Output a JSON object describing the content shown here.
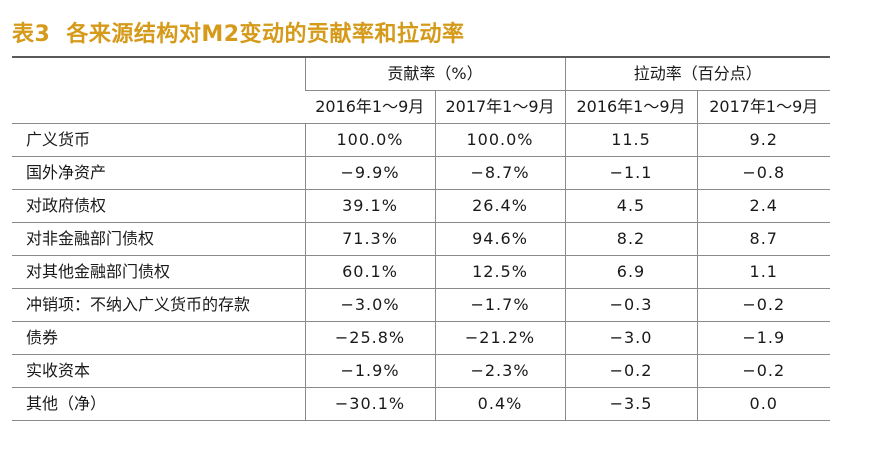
{
  "title": {
    "number": "表3",
    "text": "各来源结构对M2变动的贡献率和拉动率"
  },
  "table": {
    "group_headers": [
      "贡献率（%）",
      "拉动率（百分点）"
    ],
    "sub_headers": [
      "2016年1～9月",
      "2017年1～9月",
      "2016年1～9月",
      "2017年1～9月"
    ],
    "rows": [
      {
        "label": "广义货币",
        "values": [
          "100.0%",
          "100.0%",
          "11.5",
          "9.2"
        ]
      },
      {
        "label": "国外净资产",
        "values": [
          "−9.9%",
          "−8.7%",
          "−1.1",
          "−0.8"
        ]
      },
      {
        "label": "对政府债权",
        "values": [
          "39.1%",
          "26.4%",
          "4.5",
          "2.4"
        ]
      },
      {
        "label": "对非金融部门债权",
        "values": [
          "71.3%",
          "94.6%",
          "8.2",
          "8.7"
        ]
      },
      {
        "label": "对其他金融部门债权",
        "values": [
          "60.1%",
          "12.5%",
          "6.9",
          "1.1"
        ]
      },
      {
        "label": "冲销项：不纳入广义货币的存款",
        "values": [
          "−3.0%",
          "−1.7%",
          "−0.3",
          "−0.2"
        ]
      },
      {
        "label": "债券",
        "values": [
          "−25.8%",
          "−21.2%",
          "−3.0",
          "−1.9"
        ]
      },
      {
        "label": "实收资本",
        "values": [
          "−1.9%",
          "−2.3%",
          "−0.2",
          "−0.2"
        ]
      },
      {
        "label": "其他（净）",
        "values": [
          "−30.1%",
          "0.4%",
          "−3.5",
          "0.0"
        ]
      }
    ]
  },
  "colors": {
    "title": "#d59a19",
    "rule": "#8a8a8a",
    "top_rule": "#5a5a5a",
    "text": "#1a1a1a"
  }
}
